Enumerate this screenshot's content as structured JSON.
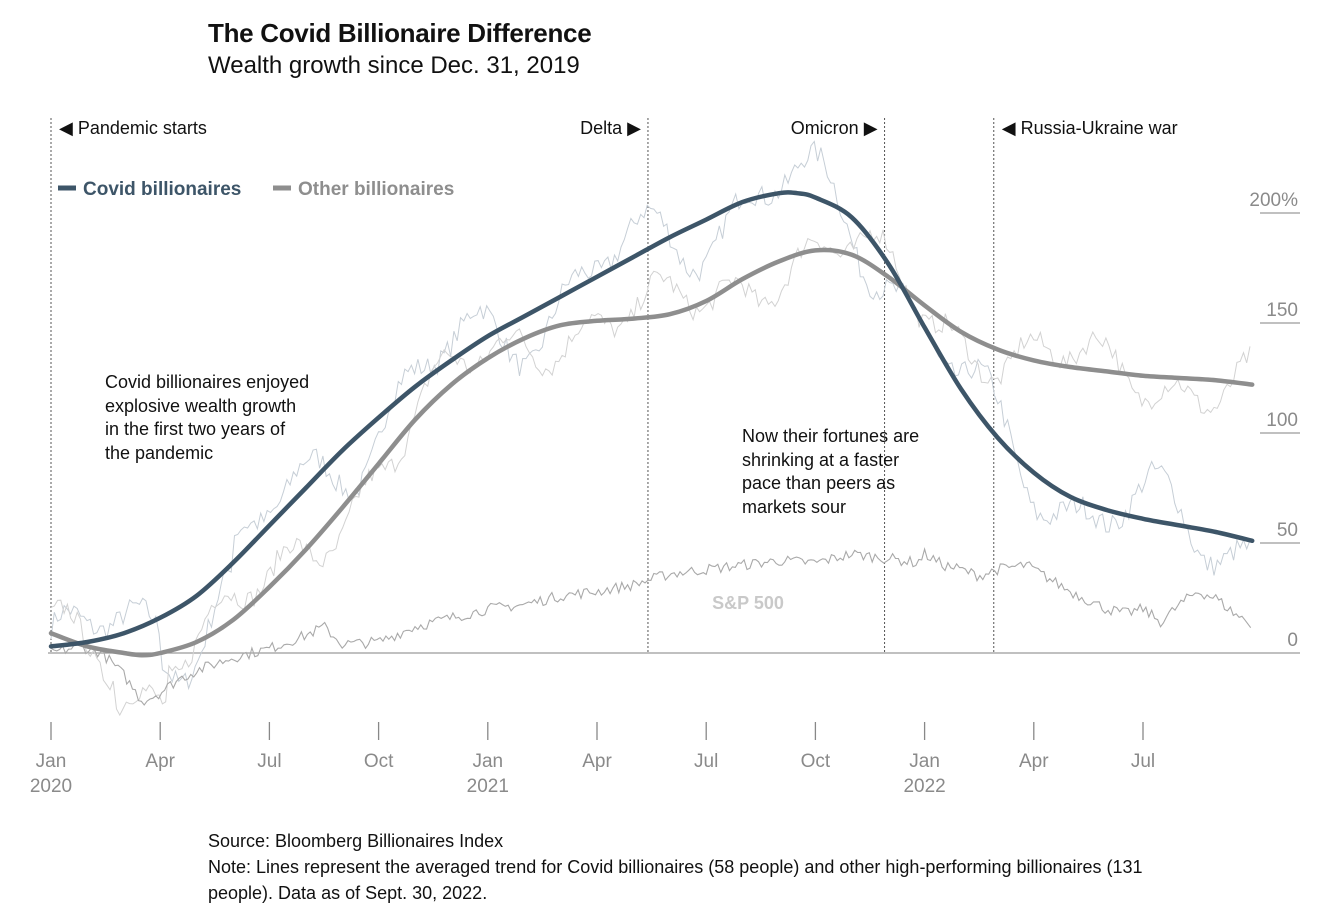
{
  "header": {
    "title": "The Covid Billionaire Difference",
    "subtitle": "Wealth growth since Dec. 31, 2019"
  },
  "annotations": {
    "left": [
      "Covid billionaires enjoyed",
      "explosive wealth growth",
      "in the first two years of",
      "the pandemic"
    ],
    "right": [
      "Now their fortunes are",
      "shrinking at a faster",
      "pace than peers as",
      "markets sour"
    ]
  },
  "footer": {
    "source": "Source: Bloomberg Billionaires Index",
    "note": "Note: Lines represent the averaged trend for Covid billionaires (58 people) and other high-performing billionaires (131 people). Data as of Sept. 30, 2022."
  },
  "colors": {
    "covid": "#3d5568",
    "other": "#8e8e8e",
    "raw": "#c6ced6",
    "sp500": "#c9c9c9",
    "axis": "#9a9a9a",
    "event_line": "#555555"
  },
  "chart_data": {
    "type": "line",
    "x_unit": "months since Jan 2020",
    "x_range": [
      0,
      33
    ],
    "ylim": [
      -30,
      210
    ],
    "y_ticks": [
      {
        "value": 0,
        "label": "0"
      },
      {
        "value": 50,
        "label": "50"
      },
      {
        "value": 100,
        "label": "100"
      },
      {
        "value": 150,
        "label": "150"
      },
      {
        "value": 200,
        "label": "200%"
      }
    ],
    "x_ticks": [
      {
        "x": 0,
        "label": "Jan",
        "year": "2020"
      },
      {
        "x": 3,
        "label": "Apr",
        "year": ""
      },
      {
        "x": 6,
        "label": "Jul",
        "year": ""
      },
      {
        "x": 9,
        "label": "Oct",
        "year": ""
      },
      {
        "x": 12,
        "label": "Jan",
        "year": "2021"
      },
      {
        "x": 15,
        "label": "Apr",
        "year": ""
      },
      {
        "x": 18,
        "label": "Jul",
        "year": ""
      },
      {
        "x": 21,
        "label": "Oct",
        "year": ""
      },
      {
        "x": 24,
        "label": "Jan",
        "year": "2022"
      },
      {
        "x": 27,
        "label": "Apr",
        "year": ""
      },
      {
        "x": 30,
        "label": "Jul",
        "year": ""
      }
    ],
    "events": [
      {
        "x": 0,
        "label": "Pandemic starts",
        "arrow": "left"
      },
      {
        "x": 16.4,
        "label": "Delta",
        "arrow": "right"
      },
      {
        "x": 22.9,
        "label": "Omicron",
        "arrow": "right"
      },
      {
        "x": 25.9,
        "label": "Russia-Ukraine war",
        "arrow": "left"
      }
    ],
    "legend": [
      {
        "name": "Covid billionaires",
        "key": "covid"
      },
      {
        "name": "Other billionaires",
        "key": "other"
      }
    ],
    "series": [
      {
        "name": "Covid billionaires",
        "key": "covid",
        "x": [
          0,
          1,
          2,
          3,
          4,
          5,
          6,
          7,
          8,
          9,
          10,
          11,
          12,
          13,
          14,
          15,
          16,
          17,
          18,
          19,
          20,
          20.5,
          21,
          22,
          23,
          24,
          25,
          26,
          27,
          28,
          29,
          30,
          31,
          32,
          33
        ],
        "values": [
          3,
          5,
          9,
          16,
          26,
          41,
          58,
          75,
          92,
          107,
          121,
          133,
          144,
          153,
          162,
          171,
          180,
          189,
          197,
          205,
          209,
          209,
          207,
          198,
          177,
          148,
          120,
          98,
          82,
          71,
          65,
          61,
          58,
          55,
          51
        ]
      },
      {
        "name": "Other billionaires",
        "key": "other",
        "x": [
          0,
          1,
          2,
          2.5,
          3,
          4,
          5,
          6,
          7,
          8,
          9,
          10,
          11,
          12,
          13,
          14,
          15,
          16,
          17,
          18,
          19,
          20,
          21,
          22,
          23,
          24,
          25,
          26,
          27,
          28,
          29,
          30,
          31,
          32,
          33
        ],
        "values": [
          9,
          3,
          0,
          -1,
          0,
          5,
          15,
          30,
          47,
          66,
          86,
          106,
          122,
          134,
          143,
          149,
          151,
          152,
          154,
          160,
          170,
          178,
          183,
          181,
          171,
          158,
          146,
          138,
          133,
          130,
          128,
          126,
          125,
          124,
          122
        ]
      },
      {
        "name": "S&P 500",
        "key": "sp500",
        "x": [
          0,
          0.8,
          1.4,
          2,
          2.5,
          3,
          3.5,
          4,
          5,
          6,
          7,
          7.5,
          8,
          9,
          10,
          11,
          12,
          13,
          14,
          15,
          16,
          17,
          18,
          19,
          20,
          21,
          22,
          22.5,
          23,
          23.8,
          24,
          24.5,
          25,
          25.5,
          26,
          26.8,
          27.5,
          28,
          28.5,
          29,
          29.5,
          30,
          30.5,
          31,
          31.5,
          32,
          32.5,
          33
        ],
        "values": [
          0,
          3,
          0,
          -10,
          -22,
          -18,
          -12,
          -8,
          -2,
          2,
          8,
          12,
          4,
          5,
          12,
          16,
          20,
          22,
          26,
          28,
          31,
          36,
          38,
          40,
          42,
          41,
          45,
          44,
          43,
          41,
          45,
          40,
          38,
          35,
          38,
          40,
          33,
          28,
          24,
          20,
          18,
          20,
          14,
          22,
          28,
          25,
          18,
          13
        ],
        "label": "S&P 500"
      }
    ]
  }
}
